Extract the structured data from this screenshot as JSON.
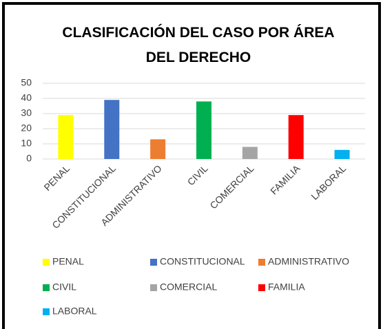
{
  "chart_data": {
    "type": "bar",
    "title": "CLASIFICACIÓN DEL CASO POR ÁREA DEL DERECHO",
    "categories": [
      "PENAL",
      "CONSTITUCIONAL",
      "ADMINISTRATIVO",
      "CIVIL",
      "COMERCIAL",
      "FAMILIA",
      "LABORAL"
    ],
    "values": [
      29,
      39,
      13,
      38,
      8,
      29,
      6
    ],
    "colors": [
      "#ffff00",
      "#4472c4",
      "#ed7d31",
      "#00b050",
      "#a5a5a5",
      "#ff0000",
      "#00b0f0"
    ],
    "ylim": [
      0,
      50
    ],
    "yticks": [
      0,
      10,
      20,
      30,
      40,
      50
    ],
    "grid": true,
    "legend": "bottom"
  }
}
